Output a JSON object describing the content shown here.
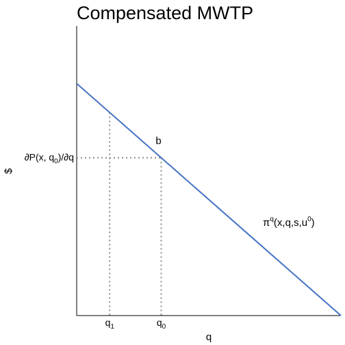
{
  "chart_data": {
    "type": "line",
    "title": "Compensated MWTP",
    "xlabel": "q",
    "ylabel": "$",
    "xlim": [
      0,
      1
    ],
    "ylim": [
      0,
      1
    ],
    "grid": false,
    "series": [
      {
        "name": "π^q(x,q,s,u^0)",
        "color": "#4472C4",
        "x": [
          0,
          1
        ],
        "y": [
          1,
          0
        ]
      }
    ],
    "series_label": {
      "base": "π",
      "sup": "q",
      "args_pre": "(x,q,s,u",
      "args_sup": "0",
      "args_post": ")",
      "color": "#CC00AA"
    },
    "point_label": "b",
    "reference_lines": {
      "color": "#888888",
      "q0": 0.32,
      "q1": 0.125,
      "price_at_q0": 0.68
    },
    "x_ticks": [
      {
        "main": "q",
        "sub": "1"
      },
      {
        "main": "q",
        "sub": "0"
      }
    ],
    "y_tick": {
      "pre": "∂P(x, q",
      "sub": "0",
      "post": ")/∂q"
    }
  }
}
